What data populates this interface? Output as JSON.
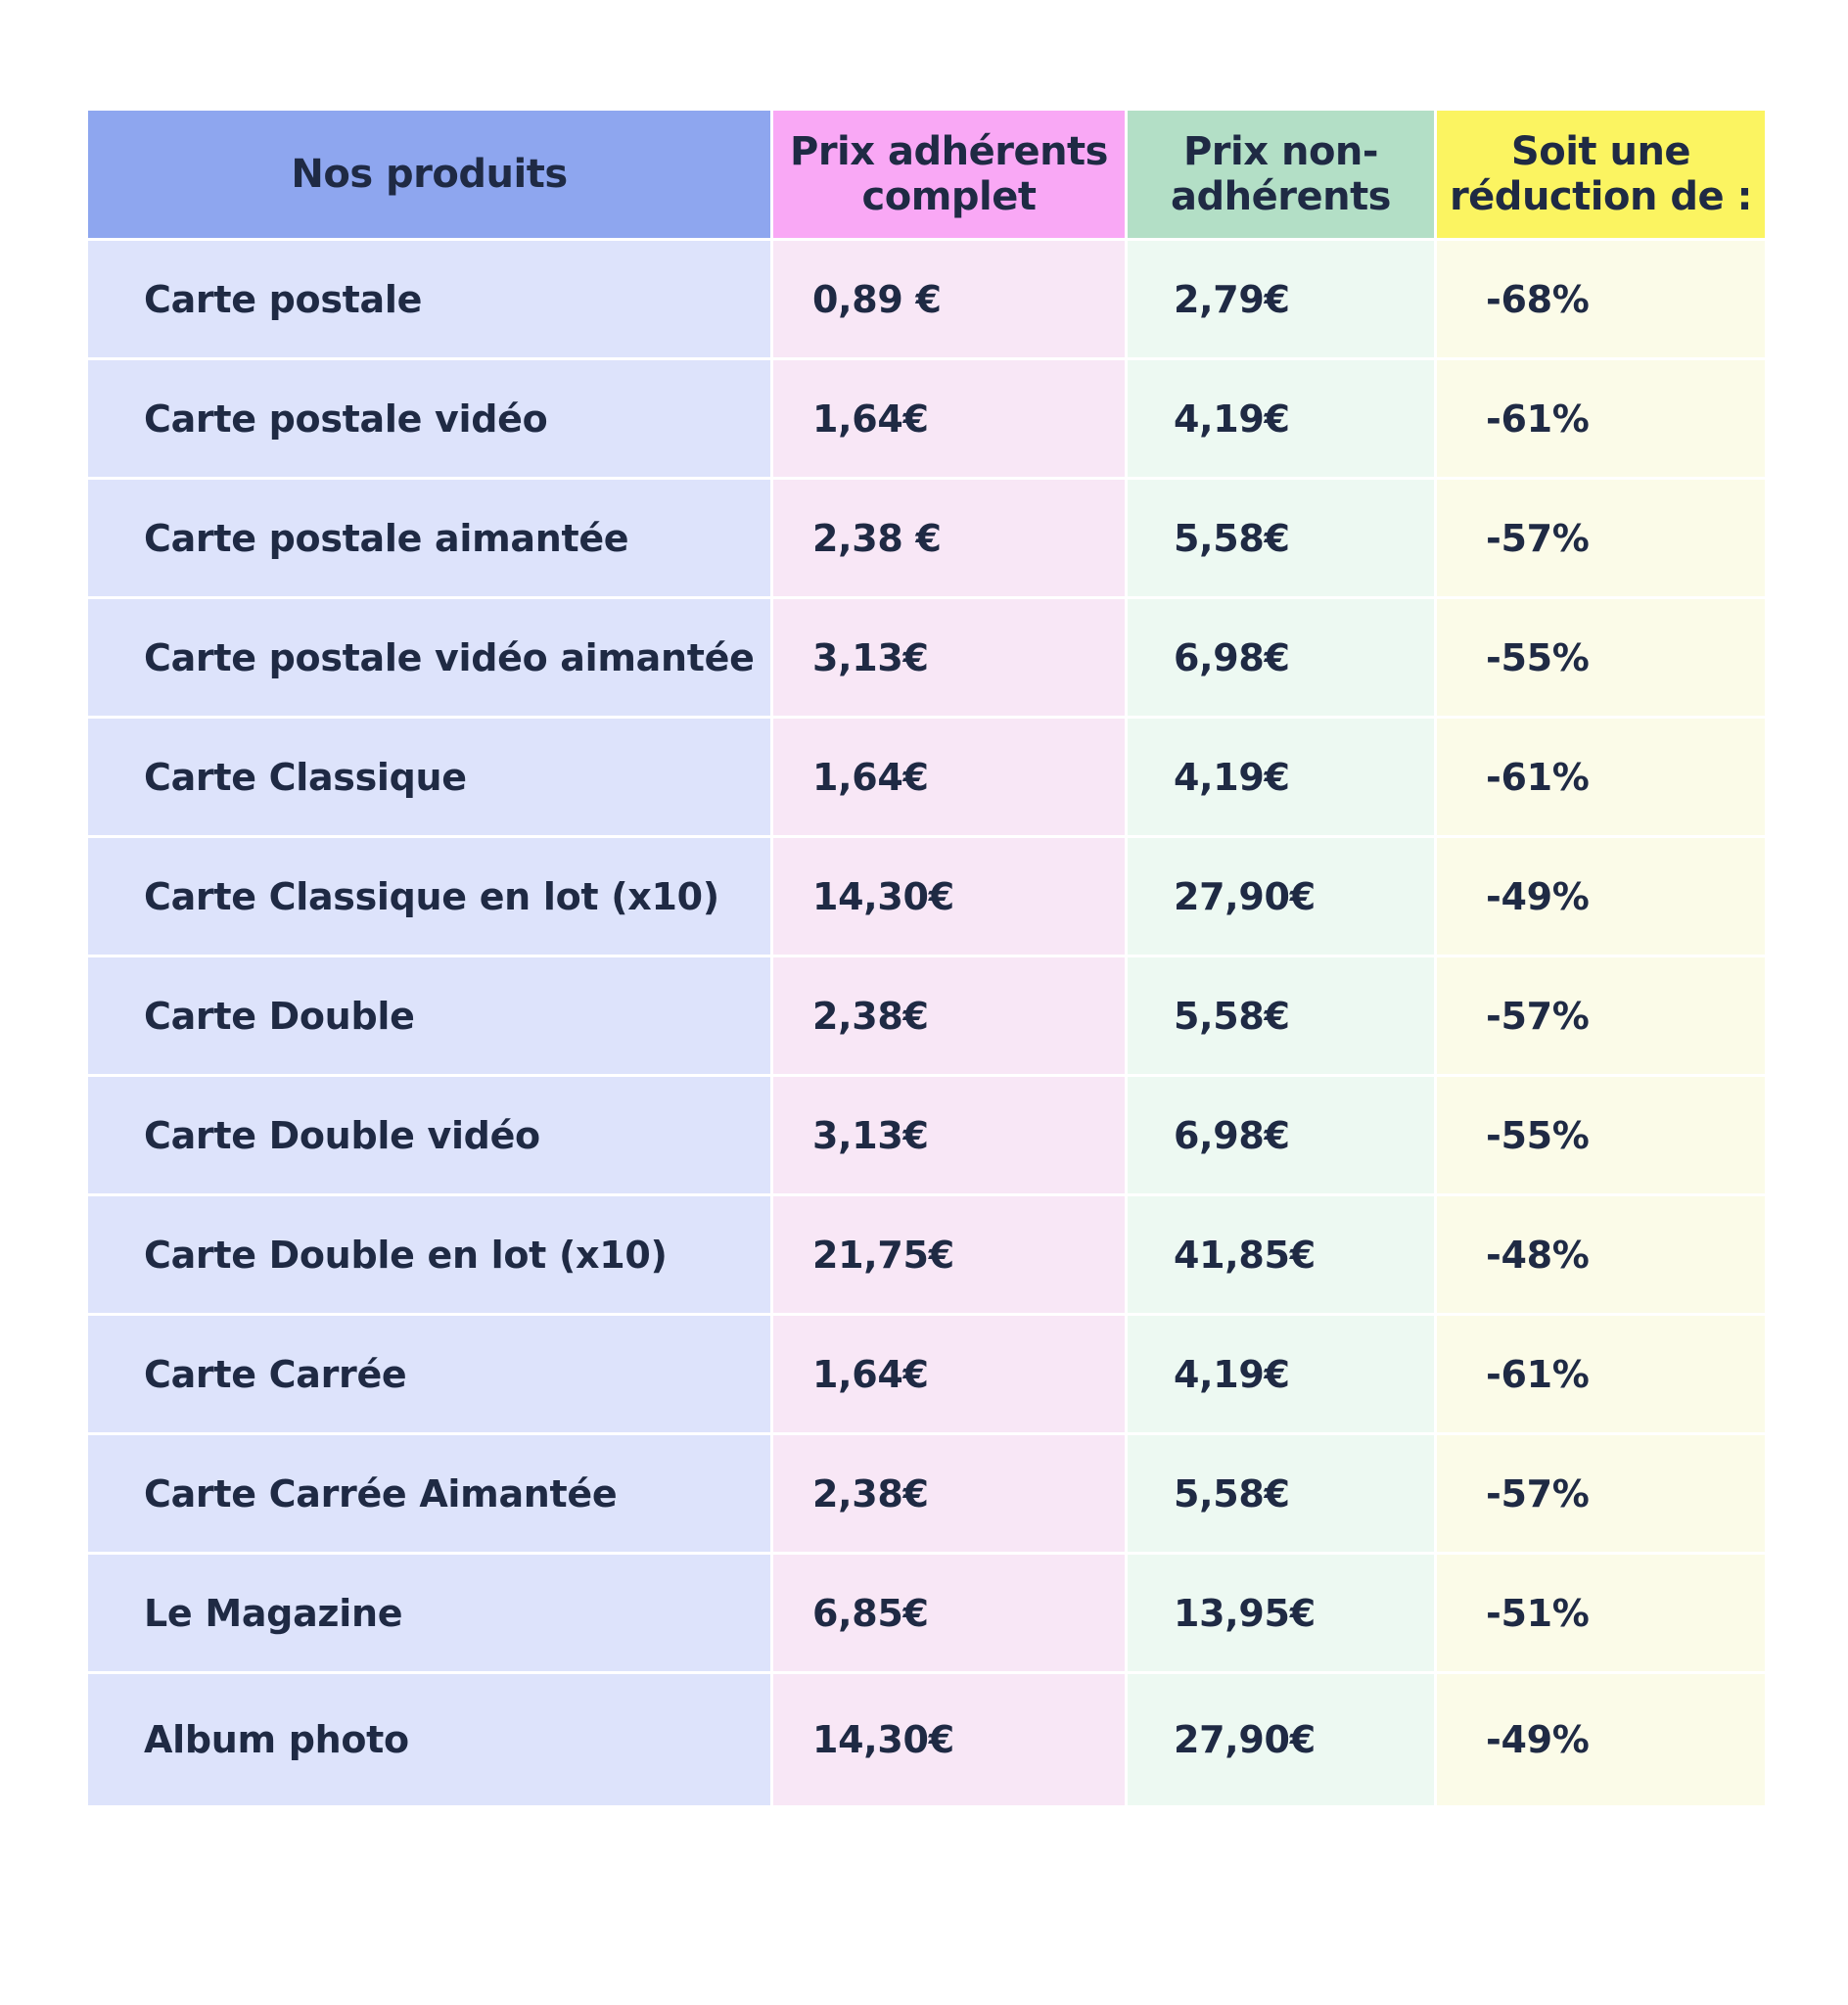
{
  "table": {
    "headers": {
      "product": "Nos produits",
      "member_price": "Prix adhérents complet",
      "non_member_price": "Prix non-adhérents",
      "reduction": "Soit une réduction de :"
    },
    "colors": {
      "product_header": "#8ea6ef",
      "member_header": "#f9a8f5",
      "non_member_header": "#b3dfc6",
      "reduction_header": "#fbf461"
    },
    "rows": [
      {
        "product": "Carte postale",
        "member_price": "0,89 €",
        "non_member_price": "2,79€",
        "reduction": "-68%"
      },
      {
        "product": "Carte postale vidéo",
        "member_price": "1,64€",
        "non_member_price": "4,19€",
        "reduction": "-61%"
      },
      {
        "product": "Carte postale aimantée",
        "member_price": "2,38 €",
        "non_member_price": "5,58€",
        "reduction": "-57%"
      },
      {
        "product": "Carte postale vidéo aimantée",
        "member_price": "3,13€",
        "non_member_price": "6,98€",
        "reduction": "-55%"
      },
      {
        "product": "Carte Classique",
        "member_price": "1,64€",
        "non_member_price": "4,19€",
        "reduction": "-61%"
      },
      {
        "product": "Carte Classique en lot (x10)",
        "member_price": "14,30€",
        "non_member_price": "27,90€",
        "reduction": "-49%"
      },
      {
        "product": "Carte Double",
        "member_price": "2,38€",
        "non_member_price": "5,58€",
        "reduction": "-57%"
      },
      {
        "product": "Carte Double vidéo",
        "member_price": "3,13€",
        "non_member_price": "6,98€",
        "reduction": "-55%"
      },
      {
        "product": "Carte Double en lot (x10)",
        "member_price": "21,75€",
        "non_member_price": "41,85€",
        "reduction": "-48%"
      },
      {
        "product": "Carte Carrée",
        "member_price": "1,64€",
        "non_member_price": "4,19€",
        "reduction": "-61%"
      },
      {
        "product": "Carte Carrée Aimantée",
        "member_price": "2,38€",
        "non_member_price": "5,58€",
        "reduction": "-57%"
      },
      {
        "product": "Le Magazine",
        "member_price": "6,85€",
        "non_member_price": "13,95€",
        "reduction": "-51%"
      },
      {
        "product": "Album photo",
        "member_price": "14,30€",
        "non_member_price": "27,90€",
        "reduction": "-49%"
      }
    ]
  }
}
